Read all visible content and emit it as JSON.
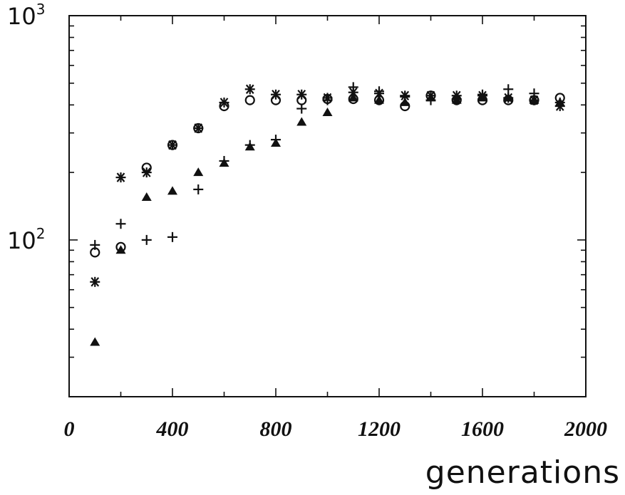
{
  "chart_data": {
    "type": "scatter",
    "title": "",
    "xlabel": "generations",
    "ylabel": "",
    "xlim": [
      0,
      2000
    ],
    "ylim": [
      20,
      1000
    ],
    "y_scale": "log",
    "x_ticks": [
      0,
      400,
      800,
      1200,
      1600,
      2000
    ],
    "x_tick_labels": [
      "0",
      "400",
      "800",
      "1200",
      "1600",
      "2000"
    ],
    "y_ticks": [
      {
        "base": "10",
        "exp": "2",
        "value": 100
      },
      {
        "base": "10",
        "exp": "3",
        "value": 1000
      }
    ],
    "grid": false,
    "legend": false,
    "series": [
      {
        "marker": "circle",
        "x": [
          100,
          200,
          300,
          400,
          500,
          600,
          700,
          800,
          900,
          1000,
          1100,
          1200,
          1300,
          1400,
          1500,
          1600,
          1700,
          1800,
          1900
        ],
        "y": [
          88,
          93,
          210,
          265,
          315,
          395,
          420,
          420,
          420,
          425,
          425,
          420,
          395,
          440,
          420,
          420,
          420,
          420,
          430
        ]
      },
      {
        "marker": "asterisk",
        "x": [
          100,
          200,
          300,
          400,
          500,
          600,
          700,
          800,
          900,
          1000,
          1100,
          1200,
          1300,
          1400,
          1500,
          1600,
          1700,
          1800,
          1900
        ],
        "y": [
          65,
          190,
          200,
          265,
          315,
          410,
          470,
          445,
          445,
          430,
          455,
          450,
          440,
          440,
          440,
          440,
          430,
          420,
          395
        ]
      },
      {
        "marker": "triangle",
        "x": [
          100,
          200,
          300,
          400,
          500,
          600,
          700,
          800,
          900,
          1000,
          1100,
          1200,
          1300,
          1400,
          1500,
          1600,
          1700,
          1800,
          1900
        ],
        "y": [
          35,
          90,
          155,
          165,
          200,
          220,
          260,
          270,
          335,
          370,
          430,
          420,
          410,
          430,
          420,
          430,
          430,
          420,
          410
        ]
      },
      {
        "marker": "plus",
        "x": [
          100,
          200,
          300,
          400,
          500,
          600,
          700,
          800,
          900,
          1000,
          1100,
          1200,
          1300,
          1400,
          1500,
          1600,
          1700,
          1800,
          1900
        ],
        "y": [
          95,
          118,
          100,
          103,
          168,
          225,
          265,
          280,
          385,
          420,
          480,
          460,
          435,
          420,
          425,
          445,
          470,
          450,
          410
        ]
      }
    ]
  }
}
